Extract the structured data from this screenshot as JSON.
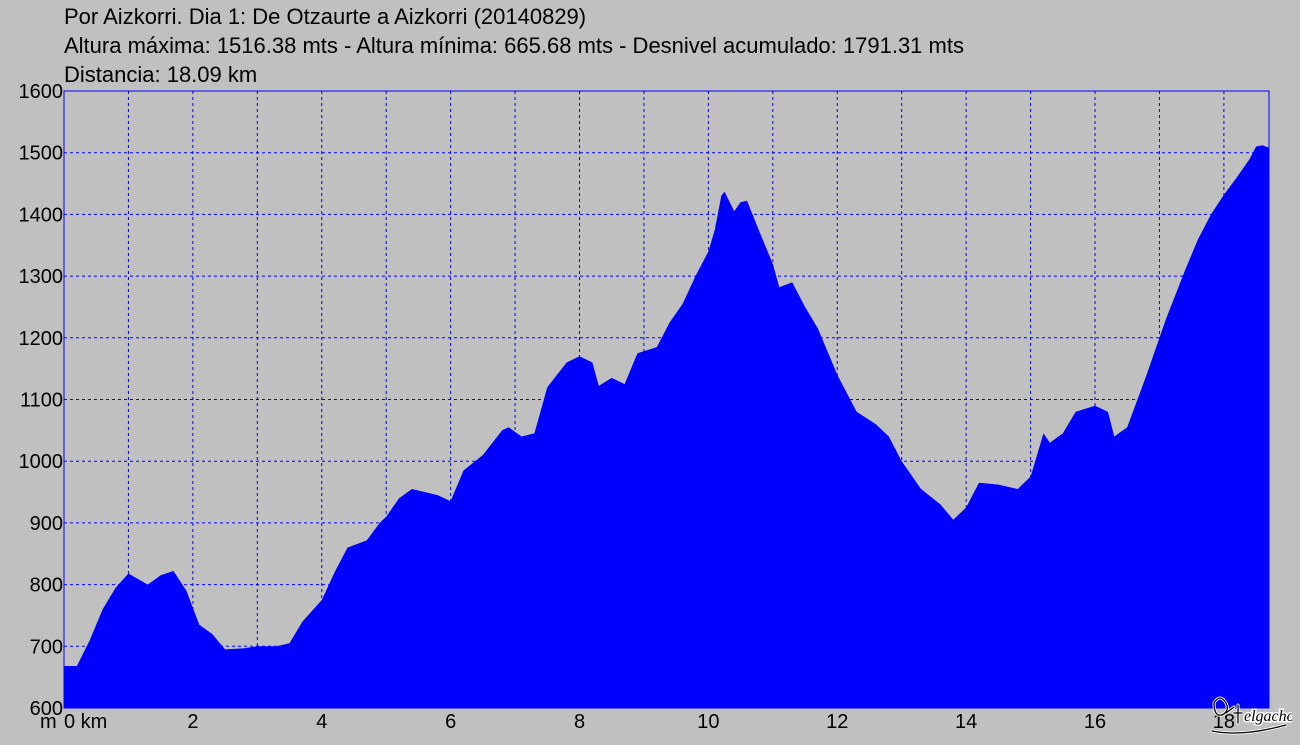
{
  "header": {
    "title": "Por Aizkorri. Dia 1: De Otzaurte a Aizkorri (20140829)",
    "stats": "Altura máxima: 1516.38 mts - Altura mínima: 665.68 mts - Desnivel acumulado: 1791.31 mts",
    "distance": "Distancia: 18.09 km"
  },
  "watermark_text": "elgacho",
  "colors": {
    "fill": "#0000ff",
    "background": "#c0c0c0",
    "grid": "#0000ff"
  },
  "chart_data": {
    "type": "area",
    "title": "Por Aizkorri. Dia 1: De Otzaurte a Aizkorri (20140829)",
    "xlabel": "km",
    "ylabel": "m",
    "xlim": [
      0,
      18.7
    ],
    "ylim": [
      600,
      1600
    ],
    "x_ticks": [
      0,
      2,
      4,
      6,
      8,
      10,
      12,
      14,
      16,
      18
    ],
    "x_tick_labels": [
      "0 km",
      "2",
      "4",
      "6",
      "8",
      "10",
      "12",
      "14",
      "16",
      "18"
    ],
    "y_ticks": [
      600,
      700,
      800,
      900,
      1000,
      1100,
      1200,
      1300,
      1400,
      1500,
      1600
    ],
    "y_tick_labels": [
      "600",
      "700",
      "800",
      "900",
      "1000",
      "1100",
      "1200",
      "1300",
      "1400",
      "1500",
      "1600"
    ],
    "y_unit_label": "m",
    "grid": true,
    "series": [
      {
        "points": [
          [
            0,
            668
          ],
          [
            0.2,
            668
          ],
          [
            0.4,
            710
          ],
          [
            0.6,
            760
          ],
          [
            0.8,
            795
          ],
          [
            1.0,
            818
          ],
          [
            1.1,
            812
          ],
          [
            1.3,
            800
          ],
          [
            1.5,
            815
          ],
          [
            1.7,
            822
          ],
          [
            1.9,
            790
          ],
          [
            2.1,
            735
          ],
          [
            2.3,
            720
          ],
          [
            2.5,
            695
          ],
          [
            2.8,
            697
          ],
          [
            3.0,
            700
          ],
          [
            3.3,
            700
          ],
          [
            3.5,
            705
          ],
          [
            3.7,
            740
          ],
          [
            4.0,
            775
          ],
          [
            4.2,
            820
          ],
          [
            4.4,
            860
          ],
          [
            4.7,
            872
          ],
          [
            4.9,
            900
          ],
          [
            5.0,
            910
          ],
          [
            5.2,
            940
          ],
          [
            5.4,
            955
          ],
          [
            5.6,
            950
          ],
          [
            5.8,
            945
          ],
          [
            6.0,
            935
          ],
          [
            6.2,
            985
          ],
          [
            6.5,
            1010
          ],
          [
            6.8,
            1050
          ],
          [
            6.9,
            1055
          ],
          [
            7.1,
            1040
          ],
          [
            7.3,
            1045
          ],
          [
            7.5,
            1120
          ],
          [
            7.8,
            1160
          ],
          [
            8.0,
            1170
          ],
          [
            8.2,
            1160
          ],
          [
            8.3,
            1122
          ],
          [
            8.5,
            1135
          ],
          [
            8.7,
            1125
          ],
          [
            8.9,
            1175
          ],
          [
            9.2,
            1185
          ],
          [
            9.4,
            1225
          ],
          [
            9.6,
            1255
          ],
          [
            9.8,
            1300
          ],
          [
            10.0,
            1340
          ],
          [
            10.1,
            1375
          ],
          [
            10.2,
            1430
          ],
          [
            10.25,
            1437
          ],
          [
            10.4,
            1405
          ],
          [
            10.5,
            1420
          ],
          [
            10.6,
            1422
          ],
          [
            10.8,
            1370
          ],
          [
            11.0,
            1320
          ],
          [
            11.1,
            1282
          ],
          [
            11.3,
            1290
          ],
          [
            11.5,
            1250
          ],
          [
            11.7,
            1215
          ],
          [
            12.0,
            1140
          ],
          [
            12.3,
            1080
          ],
          [
            12.6,
            1060
          ],
          [
            12.8,
            1040
          ],
          [
            13.0,
            1000
          ],
          [
            13.3,
            955
          ],
          [
            13.6,
            930
          ],
          [
            13.8,
            905
          ],
          [
            14.0,
            925
          ],
          [
            14.2,
            965
          ],
          [
            14.5,
            962
          ],
          [
            14.8,
            955
          ],
          [
            15.0,
            975
          ],
          [
            15.2,
            1045
          ],
          [
            15.3,
            1030
          ],
          [
            15.5,
            1045
          ],
          [
            15.7,
            1080
          ],
          [
            16.0,
            1090
          ],
          [
            16.2,
            1080
          ],
          [
            16.3,
            1040
          ],
          [
            16.5,
            1055
          ],
          [
            16.8,
            1140
          ],
          [
            17.1,
            1230
          ],
          [
            17.4,
            1310
          ],
          [
            17.6,
            1360
          ],
          [
            17.8,
            1400
          ],
          [
            18.0,
            1432
          ],
          [
            18.2,
            1460
          ],
          [
            18.4,
            1490
          ],
          [
            18.5,
            1510
          ],
          [
            18.6,
            1512
          ],
          [
            18.7,
            1508
          ]
        ]
      }
    ]
  }
}
